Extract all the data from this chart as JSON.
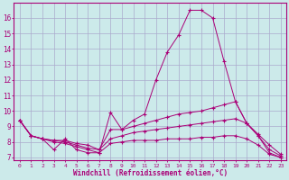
{
  "xlabel": "Windchill (Refroidissement éolien,°C)",
  "bg_color": "#cceaea",
  "grid_color": "#aaaacc",
  "line_color": "#aa0077",
  "xlim": [
    -0.5,
    23.5
  ],
  "ylim": [
    6.8,
    17.0
  ],
  "yticks": [
    7,
    8,
    9,
    10,
    11,
    12,
    13,
    14,
    15,
    16
  ],
  "xticks": [
    0,
    1,
    2,
    3,
    4,
    5,
    6,
    7,
    8,
    9,
    10,
    11,
    12,
    13,
    14,
    15,
    16,
    17,
    18,
    19,
    20,
    21,
    22,
    23
  ],
  "line1_x": [
    0,
    1,
    2,
    3,
    4,
    5,
    6,
    7,
    8,
    9,
    10,
    11,
    12,
    13,
    14,
    15,
    16,
    17,
    18,
    19,
    20,
    21,
    22,
    23
  ],
  "line1_y": [
    9.4,
    8.4,
    8.2,
    7.5,
    8.2,
    7.5,
    7.3,
    7.3,
    9.9,
    8.8,
    9.4,
    9.8,
    12.0,
    13.8,
    14.9,
    16.5,
    16.5,
    16.0,
    13.2,
    10.6,
    9.2,
    8.4,
    7.3,
    7.0
  ],
  "line2_x": [
    0,
    1,
    2,
    3,
    4,
    5,
    6,
    7,
    8,
    9,
    10,
    11,
    12,
    13,
    14,
    15,
    16,
    17,
    18,
    19,
    20,
    21,
    22,
    23
  ],
  "line2_y": [
    9.4,
    8.4,
    8.2,
    8.1,
    8.1,
    7.9,
    7.8,
    7.5,
    8.8,
    8.8,
    9.0,
    9.2,
    9.4,
    9.6,
    9.8,
    9.9,
    10.0,
    10.2,
    10.4,
    10.6,
    9.2,
    8.5,
    7.8,
    7.2
  ],
  "line3_x": [
    0,
    1,
    2,
    3,
    4,
    5,
    6,
    7,
    8,
    9,
    10,
    11,
    12,
    13,
    14,
    15,
    16,
    17,
    18,
    19,
    20,
    21,
    22,
    23
  ],
  "line3_y": [
    9.4,
    8.4,
    8.2,
    8.1,
    8.0,
    7.8,
    7.6,
    7.5,
    8.2,
    8.4,
    8.6,
    8.7,
    8.8,
    8.9,
    9.0,
    9.1,
    9.2,
    9.3,
    9.4,
    9.5,
    9.2,
    8.4,
    7.5,
    7.1
  ],
  "line4_x": [
    0,
    1,
    2,
    3,
    4,
    5,
    6,
    7,
    8,
    9,
    10,
    11,
    12,
    13,
    14,
    15,
    16,
    17,
    18,
    19,
    20,
    21,
    22,
    23
  ],
  "line4_y": [
    9.4,
    8.4,
    8.2,
    8.0,
    7.9,
    7.7,
    7.5,
    7.3,
    7.9,
    8.0,
    8.1,
    8.1,
    8.1,
    8.2,
    8.2,
    8.2,
    8.3,
    8.3,
    8.4,
    8.4,
    8.2,
    7.8,
    7.2,
    7.0
  ]
}
